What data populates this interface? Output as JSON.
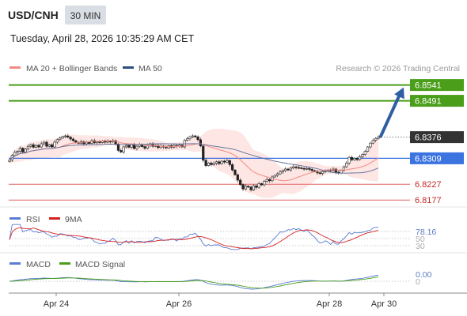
{
  "header": {
    "symbol": "USD/CNH",
    "timeframe": "30 MIN",
    "datetime": "Tuesday, April 28, 2026 10:35:29 AM CET"
  },
  "legend": {
    "ma20_label": "MA 20 + Bollinger Bands",
    "ma50_label": "MA 50",
    "source": "Research © 2026 Trading Central",
    "ma20_color": "#f28b82",
    "ma50_color": "#2c4f7c"
  },
  "colors": {
    "resistance": "#4a9e1a",
    "support": "#e06666",
    "pivot": "#3b73e0",
    "current": "#333333",
    "arrow": "#2e5fa3",
    "band_fill": "#fde2de",
    "rsi_line": "#5b7bd5",
    "rsi_ma": "#d62020",
    "macd_line": "#5b7bd5",
    "macd_signal": "#4a9e1a"
  },
  "chart_data": {
    "type": "candlestick",
    "ylim": [
      6.8155,
      6.8565
    ],
    "x_labels": [
      "Apr 24",
      "Apr 26",
      "Apr 28",
      "Apr 30"
    ],
    "levels": {
      "resistance": [
        {
          "label": "6.8541",
          "value": 6.8541
        },
        {
          "label": "6.8491",
          "value": 6.8491
        }
      ],
      "current": {
        "label": "6.8376",
        "value": 6.8376
      },
      "pivot": {
        "label": "6.8309",
        "value": 6.8309
      },
      "support": [
        {
          "label": "6.8227",
          "value": 6.8227
        },
        {
          "label": "6.8177",
          "value": 6.8177
        }
      ]
    },
    "closes": [
      6.8303,
      6.8318,
      6.8328,
      6.8331,
      6.8341,
      6.8329,
      6.8338,
      6.8347,
      6.8352,
      6.8344,
      6.835,
      6.8345,
      6.8355,
      6.836,
      6.8347,
      6.8352,
      6.8345,
      6.836,
      6.8368,
      6.8373,
      6.8378,
      6.838,
      6.8376,
      6.837,
      6.8365,
      6.8359,
      6.8357,
      6.8362,
      6.8355,
      6.836,
      6.8356,
      6.8365,
      6.8358,
      6.8361,
      6.8359,
      6.8364,
      6.836,
      6.8363,
      6.8362,
      6.8365,
      6.8353,
      6.8334,
      6.8329,
      6.8345,
      6.835,
      6.8344,
      6.8352,
      6.834,
      6.8347,
      6.8353,
      6.8346,
      6.8341,
      6.835,
      6.8355,
      6.8347,
      6.835,
      6.8343,
      6.8348,
      6.8345,
      6.8342,
      6.8349,
      6.8344,
      6.835,
      6.8347,
      6.8351,
      6.8345,
      6.8366,
      6.8371,
      6.8377,
      6.838,
      6.8377,
      6.8368,
      6.8348,
      6.8303,
      6.8286,
      6.8294,
      6.8289,
      6.8293,
      6.8298,
      6.8292,
      6.83,
      6.8297,
      6.8302,
      6.8289,
      6.8272,
      6.8257,
      6.824,
      6.8226,
      6.8212,
      6.8221,
      6.8218,
      6.8209,
      6.8222,
      6.8217,
      6.8229,
      6.8225,
      6.8236,
      6.8242,
      6.8238,
      6.825,
      6.8255,
      6.826,
      6.8266,
      6.827,
      6.8275,
      6.8272,
      6.8278,
      6.8282,
      6.828,
      6.8279,
      6.8277,
      6.8275,
      6.8277,
      6.8274,
      6.827,
      6.8268,
      6.8263,
      6.8261,
      6.8267,
      6.8269,
      6.8272,
      6.827,
      6.8275,
      6.8265,
      6.8262,
      6.8271,
      6.8282,
      6.8294,
      6.8312,
      6.8304,
      6.8309,
      6.8305,
      6.8314,
      6.8321,
      6.8331,
      6.8345,
      6.8357,
      6.8366,
      6.8372,
      6.8376
    ],
    "rsi": {
      "label": "RSI",
      "ma_label": "9MA",
      "value_label": "78.16",
      "level_labels": [
        "50",
        "30"
      ]
    },
    "macd": {
      "label": "MACD",
      "signal_label": "MACD Signal",
      "value_label": "0.00"
    }
  }
}
